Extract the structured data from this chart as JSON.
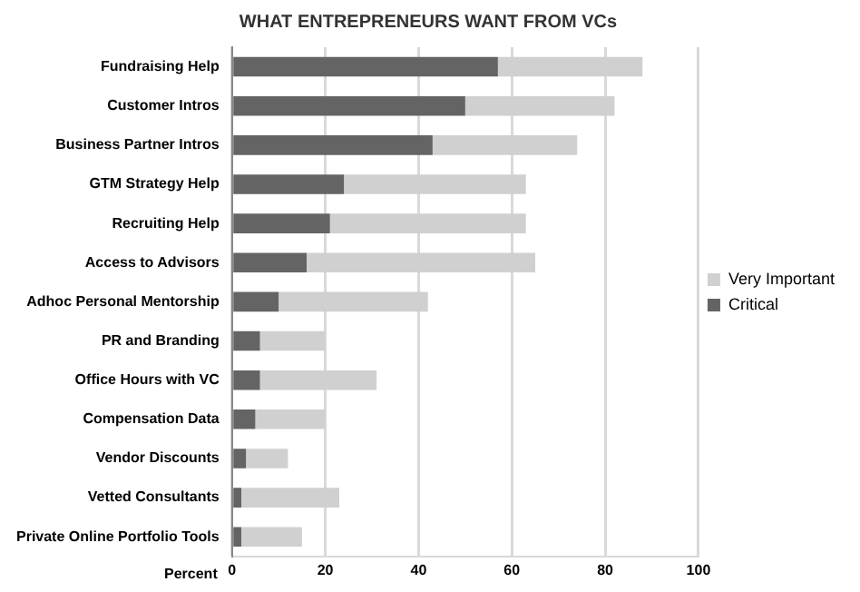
{
  "chart_data": {
    "type": "bar",
    "title": "WHAT ENTREPRENEURS WANT FROM VCs",
    "orientation": "horizontal",
    "stacked": true,
    "xlabel": "Percent",
    "categories": [
      "Fundraising Help",
      "Customer Intros",
      "Business Partner Intros",
      "GTM Strategy Help",
      "Recruiting Help",
      "Access to Advisors",
      "Adhoc Personal Mentorship",
      "PR and Branding",
      "Office Hours with VC",
      "Compensation Data",
      "Vendor Discounts",
      "Vetted Consultants",
      "Private Online Portfolio Tools"
    ],
    "series": [
      {
        "name": "Critical",
        "color": "#646464",
        "values": [
          57,
          50,
          43,
          24,
          21,
          16,
          10,
          6,
          6,
          5,
          3,
          2,
          2
        ]
      },
      {
        "name": "Very Important",
        "color": "#d0d0d0",
        "values": [
          31,
          32,
          31,
          39,
          42,
          49,
          32,
          14,
          25,
          15,
          9,
          21,
          13
        ]
      }
    ],
    "xlim": [
      0,
      100
    ],
    "xticks": [
      0,
      20,
      40,
      60,
      80,
      100
    ],
    "grid": "x",
    "legend": "right"
  }
}
